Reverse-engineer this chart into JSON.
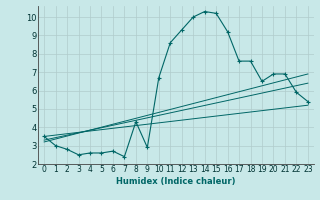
{
  "xlabel": "Humidex (Indice chaleur)",
  "ylabel": "",
  "background_color": "#c8e8e8",
  "grid_color": "#b0cccc",
  "line_color": "#006666",
  "xlim": [
    -0.5,
    23.5
  ],
  "ylim": [
    2,
    10.6
  ],
  "xticks": [
    0,
    1,
    2,
    3,
    4,
    5,
    6,
    7,
    8,
    9,
    10,
    11,
    12,
    13,
    14,
    15,
    16,
    17,
    18,
    19,
    20,
    21,
    22,
    23
  ],
  "yticks": [
    2,
    3,
    4,
    5,
    6,
    7,
    8,
    9,
    10
  ],
  "curve1_x": [
    0,
    1,
    2,
    3,
    4,
    5,
    6,
    7,
    8,
    9,
    10,
    11,
    12,
    13,
    14,
    15,
    16,
    17,
    18,
    19,
    20,
    21,
    22,
    23
  ],
  "curve1_y": [
    3.5,
    3.0,
    2.8,
    2.5,
    2.6,
    2.6,
    2.7,
    2.4,
    4.3,
    2.9,
    6.7,
    8.6,
    9.3,
    10.0,
    10.3,
    10.2,
    9.2,
    7.6,
    7.6,
    6.5,
    6.9,
    6.9,
    5.9,
    5.4
  ],
  "line1_x": [
    0,
    23
  ],
  "line1_y": [
    3.3,
    6.4
  ],
  "line2_x": [
    0,
    23
  ],
  "line2_y": [
    3.5,
    5.2
  ],
  "line3_x": [
    0,
    23
  ],
  "line3_y": [
    3.2,
    6.9
  ],
  "xlabel_fontsize": 6,
  "tick_fontsize": 5.5
}
